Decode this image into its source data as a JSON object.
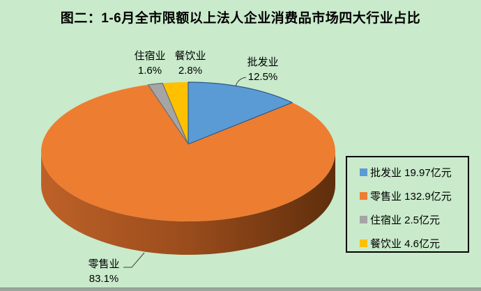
{
  "page": {
    "background_color": "#C9EACB",
    "title": "图二：1-6月全市限额以上法人企业消费品市场四大行业占比"
  },
  "chart_data": {
    "type": "pie",
    "is_3d": true,
    "title": "图二：1-6月全市限额以上法人企业消费品市场四大行业占比",
    "unit": "亿元",
    "direction": "clockwise",
    "start_angle_deg": 0,
    "series": [
      {
        "name": "批发业",
        "value": 19.97,
        "value_label": "19.97亿元",
        "percent": 12.5,
        "percent_label": "12.5%",
        "color": "#5B9BD5",
        "edge_color": "#2C5A82"
      },
      {
        "name": "零售业",
        "value": 132.9,
        "value_label": "132.9亿元",
        "percent": 83.1,
        "percent_label": "83.1%",
        "color": "#ED7D31",
        "edge_color": null
      },
      {
        "name": "住宿业",
        "value": 2.5,
        "value_label": "2.5亿元",
        "percent": 1.6,
        "percent_label": "1.6%",
        "color": "#A5A5A5",
        "edge_color": "#6E6E6E"
      },
      {
        "name": "餐饮业",
        "value": 4.6,
        "value_label": "4.6亿元",
        "percent": 2.8,
        "percent_label": "2.8%",
        "color": "#FFC000",
        "edge_color": null
      }
    ],
    "legend": {
      "position": "right",
      "border_color": "#000000",
      "entries": [
        "批发业 19.97亿元",
        "零售业 132.9亿元",
        "住宿业 2.5亿元",
        "餐饮业 4.6亿元"
      ]
    },
    "side_gradient": [
      "#BE6128",
      "#9A4C1C",
      "#5F2E0C"
    ]
  }
}
